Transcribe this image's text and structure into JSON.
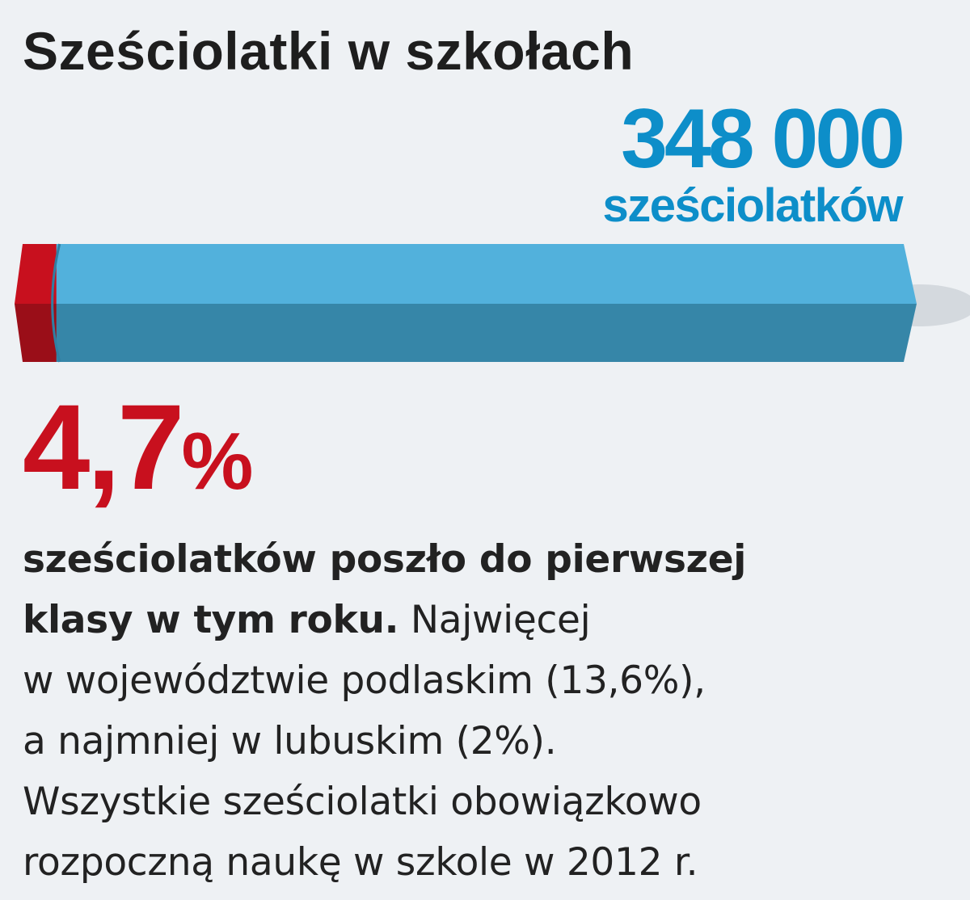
{
  "title": "Sześciolatki w szkołach",
  "total": {
    "value": "348 000",
    "unit": "sześciolatków"
  },
  "highlight": {
    "value": "4,7",
    "sign": "%"
  },
  "description": {
    "bold_line_1": "sześciolatków poszło do pierwszej",
    "bold_line_2": "klasy w tym roku.",
    "normal_line_2": " Najwięcej",
    "line_3": "w województwie podlaskim (13,6%),",
    "line_4": "a najmniej w lubuskim (2%).",
    "line_5": "Wszystkie sześciolatki obowiązkowo",
    "line_6": "rozpoczną naukę w szkole w 2012 r."
  },
  "colors": {
    "highlight_red": "#c8101e",
    "bar_blue_top": "#52b1dc",
    "bar_blue_bottom": "#3686a8",
    "text_blue": "#0d8ec9"
  },
  "chart_data": {
    "type": "bar",
    "orientation": "horizontal",
    "stacked": true,
    "total": 348000,
    "series": [
      {
        "name": "",
        "value": 4.7,
        "color": "#c8101e"
      },
      {
        "name": "",
        "value": 95.3,
        "color": "#52b1dc"
      }
    ],
    "xlim": [
      0,
      100
    ]
  }
}
